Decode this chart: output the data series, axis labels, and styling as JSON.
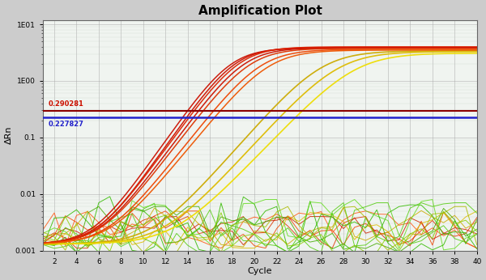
{
  "title": "Amplification Plot",
  "xlabel": "Cycle",
  "ylabel": "ΔRn",
  "xlim": [
    1,
    40
  ],
  "ylim_log": [
    0.001,
    12
  ],
  "threshold_red": 0.290281,
  "threshold_blue": 0.227827,
  "threshold_red_label": "0.290281",
  "threshold_blue_label": "0.227827",
  "plot_bg_color": "#f0f4f0",
  "border_color": "#444444",
  "red_curves": [
    {
      "ct": 17.8,
      "top": 3.8,
      "k": 0.65,
      "color": "#cc1100"
    },
    {
      "ct": 18.2,
      "top": 3.9,
      "k": 0.65,
      "color": "#cc1100"
    },
    {
      "ct": 18.6,
      "top": 4.0,
      "k": 0.63,
      "color": "#dd2200"
    },
    {
      "ct": 19.0,
      "top": 3.85,
      "k": 0.62,
      "color": "#cc1100"
    },
    {
      "ct": 19.5,
      "top": 3.75,
      "k": 0.6,
      "color": "#dd3300"
    },
    {
      "ct": 20.5,
      "top": 3.6,
      "k": 0.58,
      "color": "#ee4400"
    },
    {
      "ct": 21.2,
      "top": 3.5,
      "k": 0.56,
      "color": "#ee5500"
    }
  ],
  "yellow_curves": [
    {
      "ct": 26.0,
      "top": 3.4,
      "k": 0.52,
      "color": "#ccaa00"
    },
    {
      "ct": 27.5,
      "top": 3.3,
      "k": 0.5,
      "color": "#ddbb00"
    },
    {
      "ct": 29.0,
      "top": 3.1,
      "k": 0.48,
      "color": "#eedd00"
    }
  ],
  "green_noise_params": [
    {
      "seed": 11,
      "color": "#33bb00",
      "max_val": 0.009
    },
    {
      "seed": 22,
      "color": "#55cc11",
      "max_val": 0.007
    },
    {
      "seed": 33,
      "color": "#44aa00",
      "max_val": 0.006
    },
    {
      "seed": 44,
      "color": "#66dd22",
      "max_val": 0.008
    },
    {
      "seed": 55,
      "color": "#33bb00",
      "max_val": 0.006
    },
    {
      "seed": 66,
      "color": "#55cc11",
      "max_val": 0.007
    },
    {
      "seed": 77,
      "color": "#aabb00",
      "max_val": 0.006
    },
    {
      "seed": 88,
      "color": "#88cc00",
      "max_val": 0.005
    }
  ],
  "red_noise_params": [
    {
      "seed": 201,
      "color": "#ee4400",
      "max_val": 0.005
    },
    {
      "seed": 212,
      "color": "#dd3300",
      "max_val": 0.004
    },
    {
      "seed": 223,
      "color": "#ff5511",
      "max_val": 0.005
    },
    {
      "seed": 234,
      "color": "#cc2200",
      "max_val": 0.004
    }
  ],
  "yellow_noise_params": [
    {
      "seed": 301,
      "color": "#ccaa00",
      "max_val": 0.006
    },
    {
      "seed": 312,
      "color": "#ddbb00",
      "max_val": 0.005
    }
  ]
}
